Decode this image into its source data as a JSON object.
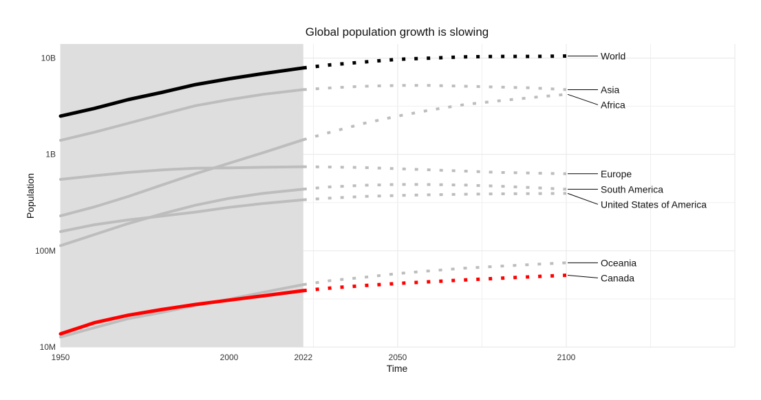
{
  "chart_data": {
    "type": "line",
    "title": "Global population growth is slowing",
    "xlabel": "Time",
    "ylabel": "Population",
    "y_scale": "log",
    "xlim": [
      1950,
      2150
    ],
    "ylim": [
      10000000,
      14000000000
    ],
    "x_ticks": [
      {
        "value": 1950,
        "label": "1950"
      },
      {
        "value": 2000,
        "label": "2000"
      },
      {
        "value": 2022,
        "label": "2022"
      },
      {
        "value": 2050,
        "label": "2050"
      },
      {
        "value": 2100,
        "label": "2100"
      }
    ],
    "y_ticks": [
      {
        "value": 10000000,
        "label": "10M"
      },
      {
        "value": 100000000,
        "label": "100M"
      },
      {
        "value": 1000000000,
        "label": "1B"
      },
      {
        "value": 10000000000,
        "label": "10B"
      }
    ],
    "observed_range": [
      1950,
      2022
    ],
    "projected_range": [
      2022,
      2100
    ],
    "shaded_region": {
      "x_start": 1950,
      "x_end": 2022,
      "color": "#dedede"
    },
    "grid": true,
    "colors": {
      "highlight": "#ff0000",
      "world": "#000000",
      "other": "#bdbdbd"
    },
    "series": [
      {
        "name": "World",
        "color": "#000000",
        "x": [
          1950,
          1960,
          1970,
          1980,
          1990,
          2000,
          2010,
          2022,
          2030,
          2040,
          2050,
          2060,
          2070,
          2080,
          2090,
          2100
        ],
        "values": [
          2500000000,
          3000000000,
          3700000000,
          4400000000,
          5300000000,
          6100000000,
          6900000000,
          7900000000,
          8500000000,
          9100000000,
          9700000000,
          10000000000,
          10300000000,
          10400000000,
          10400000000,
          10500000000
        ]
      },
      {
        "name": "Asia",
        "color": "#bdbdbd",
        "x": [
          1950,
          1960,
          1970,
          1980,
          1990,
          2000,
          2010,
          2022,
          2030,
          2040,
          2050,
          2060,
          2070,
          2080,
          2090,
          2100
        ],
        "values": [
          1400000000,
          1700000000,
          2100000000,
          2600000000,
          3200000000,
          3700000000,
          4200000000,
          4700000000,
          4900000000,
          5100000000,
          5200000000,
          5200000000,
          5100000000,
          5000000000,
          4900000000,
          4700000000
        ]
      },
      {
        "name": "Africa",
        "color": "#bdbdbd",
        "x": [
          1950,
          1960,
          1970,
          1980,
          1990,
          2000,
          2010,
          2022,
          2030,
          2040,
          2050,
          2060,
          2070,
          2080,
          2090,
          2100
        ],
        "values": [
          230000000,
          285000000,
          365000000,
          480000000,
          630000000,
          810000000,
          1040000000,
          1420000000,
          1700000000,
          2100000000,
          2500000000,
          2900000000,
          3300000000,
          3600000000,
          3900000000,
          4200000000
        ]
      },
      {
        "name": "Europe",
        "color": "#bdbdbd",
        "x": [
          1950,
          1960,
          1970,
          1980,
          1990,
          2000,
          2010,
          2022,
          2030,
          2040,
          2050,
          2060,
          2070,
          2080,
          2090,
          2100
        ],
        "values": [
          550000000,
          600000000,
          650000000,
          690000000,
          720000000,
          725000000,
          735000000,
          745000000,
          740000000,
          730000000,
          710000000,
          690000000,
          670000000,
          650000000,
          640000000,
          630000000
        ]
      },
      {
        "name": "United States of America",
        "color": "#bdbdbd",
        "x": [
          1950,
          1960,
          1970,
          1980,
          1990,
          2000,
          2010,
          2022,
          2030,
          2040,
          2050,
          2060,
          2070,
          2080,
          2090,
          2100
        ],
        "values": [
          158000000,
          186000000,
          209000000,
          229000000,
          252000000,
          282000000,
          309000000,
          338000000,
          352000000,
          366000000,
          375000000,
          381000000,
          386000000,
          390000000,
          392000000,
          394000000
        ]
      },
      {
        "name": "South America",
        "color": "#bdbdbd",
        "x": [
          1950,
          1960,
          1970,
          1980,
          1990,
          2000,
          2010,
          2022,
          2030,
          2040,
          2050,
          2060,
          2070,
          2080,
          2090,
          2100
        ],
        "values": [
          113000000,
          147000000,
          191000000,
          241000000,
          297000000,
          350000000,
          394000000,
          436000000,
          460000000,
          478000000,
          488000000,
          487000000,
          480000000,
          468000000,
          452000000,
          435000000
        ]
      },
      {
        "name": "Oceania",
        "color": "#bdbdbd",
        "x": [
          1950,
          1960,
          1970,
          1980,
          1990,
          2000,
          2010,
          2022,
          2030,
          2040,
          2050,
          2060,
          2070,
          2080,
          2090,
          2100
        ],
        "values": [
          12700000,
          15900000,
          19700000,
          22900000,
          27000000,
          31400000,
          37000000,
          44500000,
          49000000,
          53000000,
          58000000,
          62000000,
          66000000,
          69000000,
          72000000,
          75000000
        ]
      },
      {
        "name": "Canada",
        "color": "#ff0000",
        "x": [
          1950,
          1960,
          1970,
          1980,
          1990,
          2000,
          2010,
          2022,
          2030,
          2040,
          2050,
          2060,
          2070,
          2080,
          2090,
          2100
        ],
        "values": [
          13700000,
          17900000,
          21400000,
          24500000,
          27700000,
          30700000,
          34000000,
          38500000,
          41000000,
          43500000,
          45800000,
          47800000,
          49800000,
          51800000,
          53800000,
          55700000
        ]
      }
    ]
  }
}
